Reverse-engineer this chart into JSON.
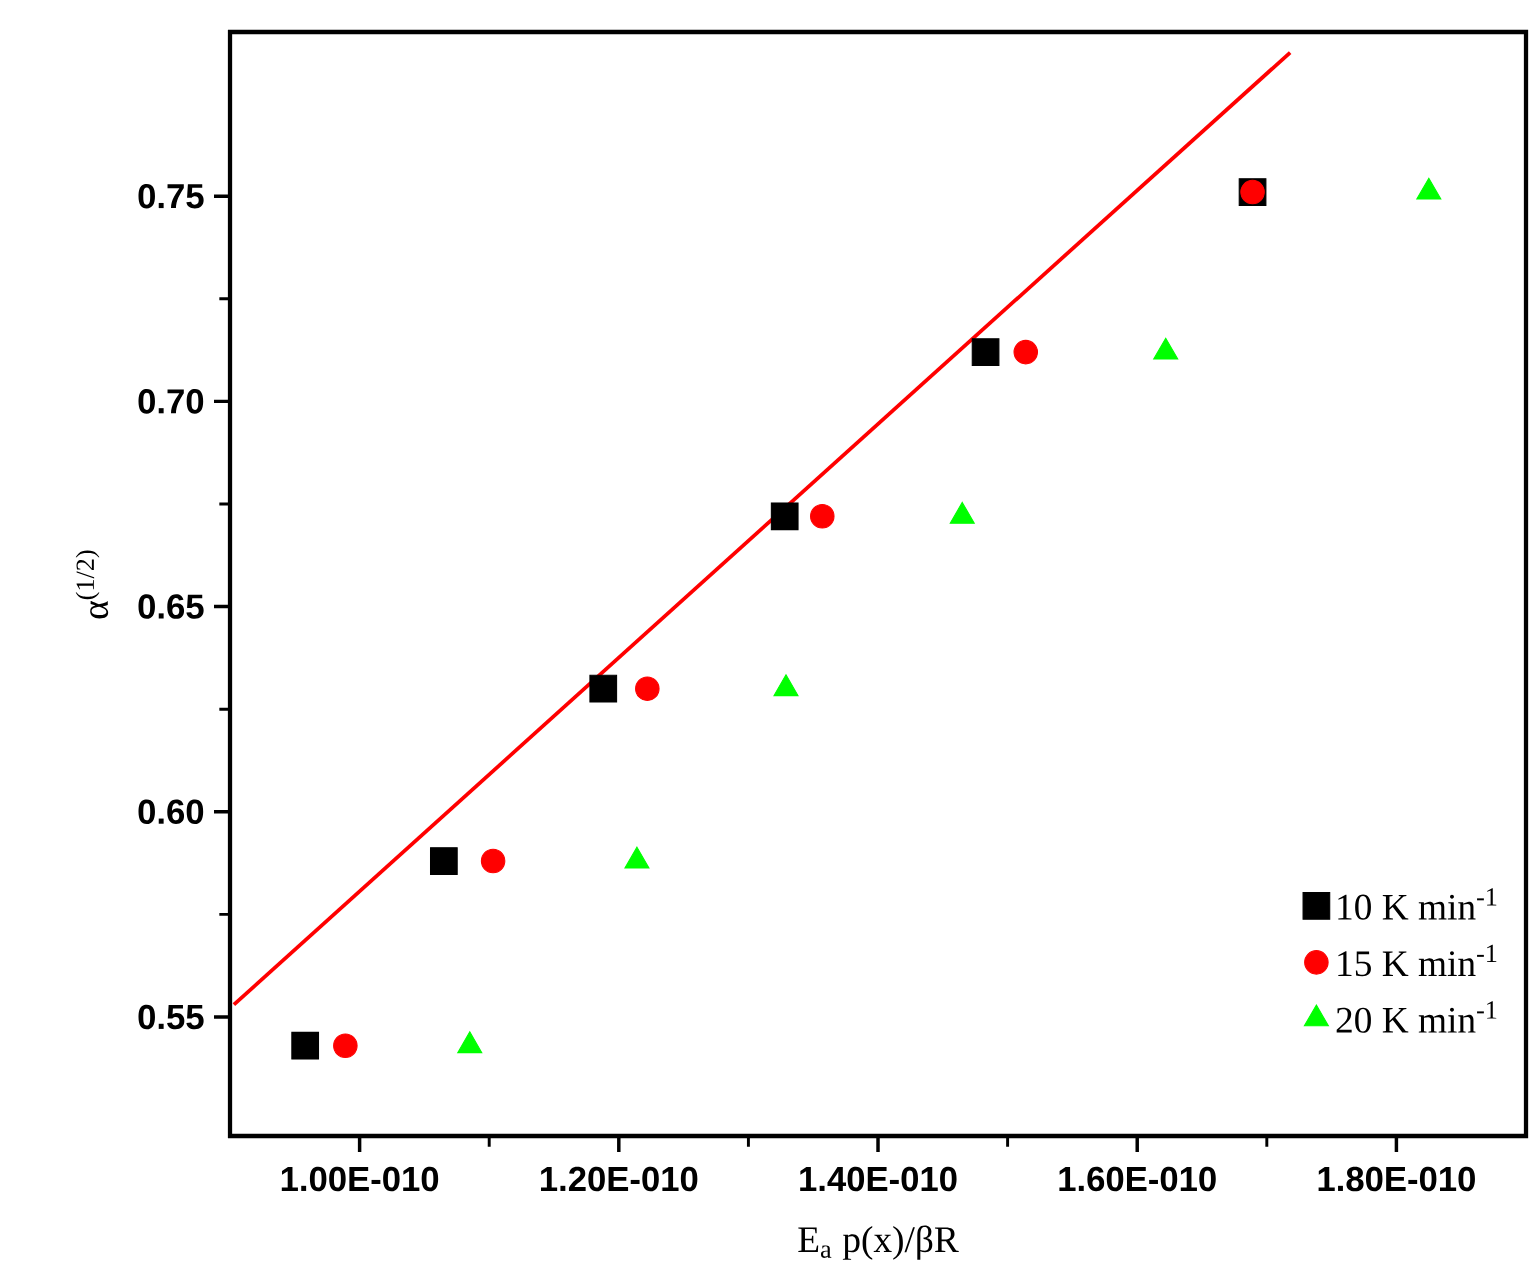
{
  "chart_data": {
    "type": "scatter",
    "xlabel": "E$_{a}$ p(x)/βR",
    "ylabel": "α$^{(1/2)}$",
    "xlim": [
      9e-11,
      1.9e-10
    ],
    "ylim": [
      0.521,
      0.79
    ],
    "xticks": [
      {
        "value": 1e-10,
        "label": "1.00E-010"
      },
      {
        "value": 1.2e-10,
        "label": "1.20E-010"
      },
      {
        "value": 1.4e-10,
        "label": "1.40E-010"
      },
      {
        "value": 1.6e-10,
        "label": "1.60E-010"
      },
      {
        "value": 1.8e-10,
        "label": "1.80E-010"
      }
    ],
    "yticks": [
      {
        "value": 0.55,
        "label": "0.55"
      },
      {
        "value": 0.6,
        "label": "0.60"
      },
      {
        "value": 0.65,
        "label": "0.65"
      },
      {
        "value": 0.7,
        "label": "0.70"
      },
      {
        "value": 0.75,
        "label": "0.75"
      }
    ],
    "grid": false,
    "legend": "bottom right",
    "series": [
      {
        "name": "10 K min$^{-1}$",
        "color": "#000000",
        "marker": "square",
        "x": [
          9.58e-11,
          1.065e-10,
          1.188e-10,
          1.328e-10,
          1.483e-10,
          1.689e-10
        ],
        "values": [
          0.543,
          0.588,
          0.63,
          0.672,
          0.712,
          0.751
        ]
      },
      {
        "name": "15 K min$^{-1}$",
        "color": "#ff0000",
        "marker": "circle",
        "x": [
          9.89e-11,
          1.103e-10,
          1.222e-10,
          1.357e-10,
          1.514e-10,
          1.689e-10
        ],
        "values": [
          0.543,
          0.588,
          0.63,
          0.672,
          0.712,
          0.751
        ]
      },
      {
        "name": "20 K min$^{-1}$",
        "color": "#00ff00",
        "marker": "triangle",
        "x": [
          1.085e-10,
          1.214e-10,
          1.329e-10,
          1.465e-10,
          1.622e-10,
          1.825e-10
        ],
        "values": [
          0.543,
          0.588,
          0.63,
          0.672,
          0.712,
          0.751
        ]
      },
      {
        "type": "line",
        "color": "#ff0000",
        "x": [
          9.03e-11,
          1.718e-10
        ],
        "values": [
          0.553,
          0.785
        ]
      }
    ]
  }
}
